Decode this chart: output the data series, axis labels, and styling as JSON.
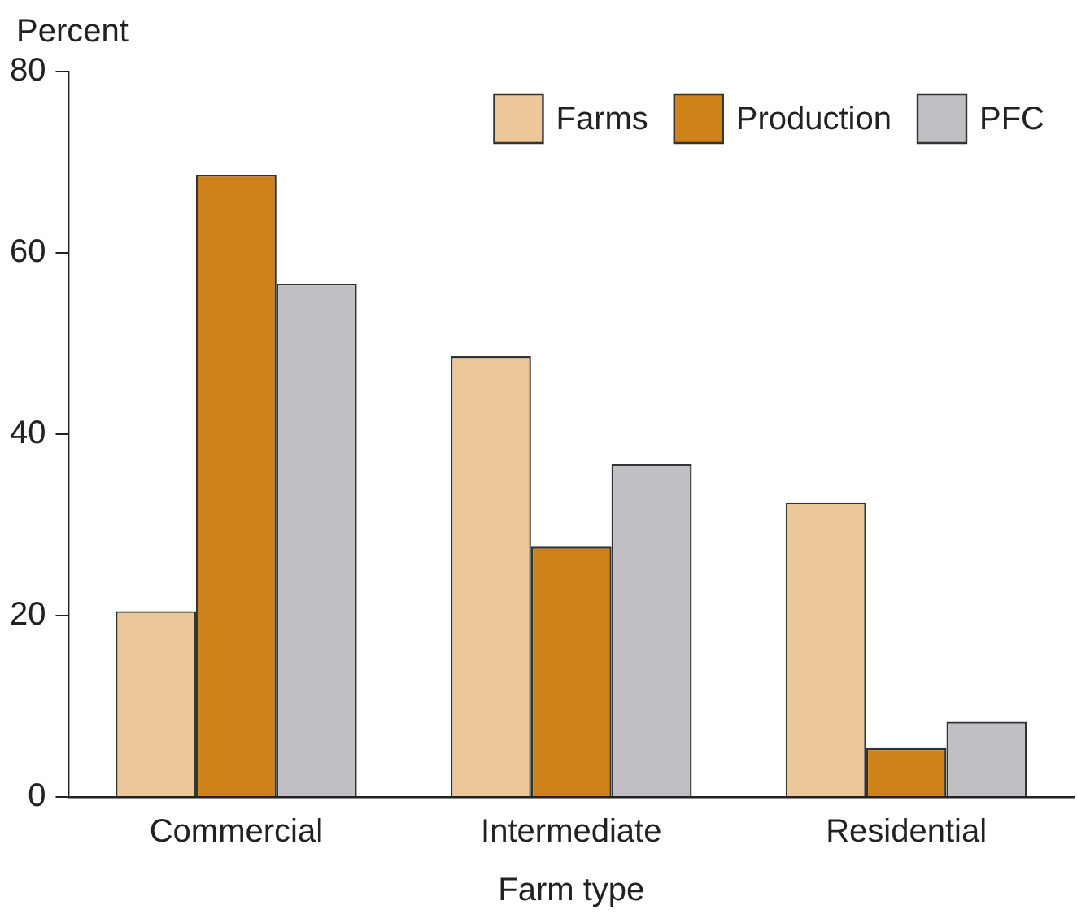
{
  "chart_data": {
    "type": "bar",
    "xlabel": "Farm type",
    "ylabel": "Percent",
    "categories": [
      "Commercial",
      "Intermediate",
      "Residential"
    ],
    "series": [
      {
        "name": "Farms",
        "color": "#ecc797",
        "values": [
          20.5,
          48.6,
          32.5
        ]
      },
      {
        "name": "Production",
        "color": "#cf8219",
        "values": [
          68.6,
          27.6,
          5.4
        ]
      },
      {
        "name": "PFC",
        "color": "#c0c0c4",
        "values": [
          56.6,
          36.7,
          8.3
        ]
      }
    ],
    "ylim": [
      0,
      80
    ],
    "yticks": [
      0,
      20,
      40,
      60,
      80
    ],
    "grid": false,
    "legend": "top right"
  }
}
